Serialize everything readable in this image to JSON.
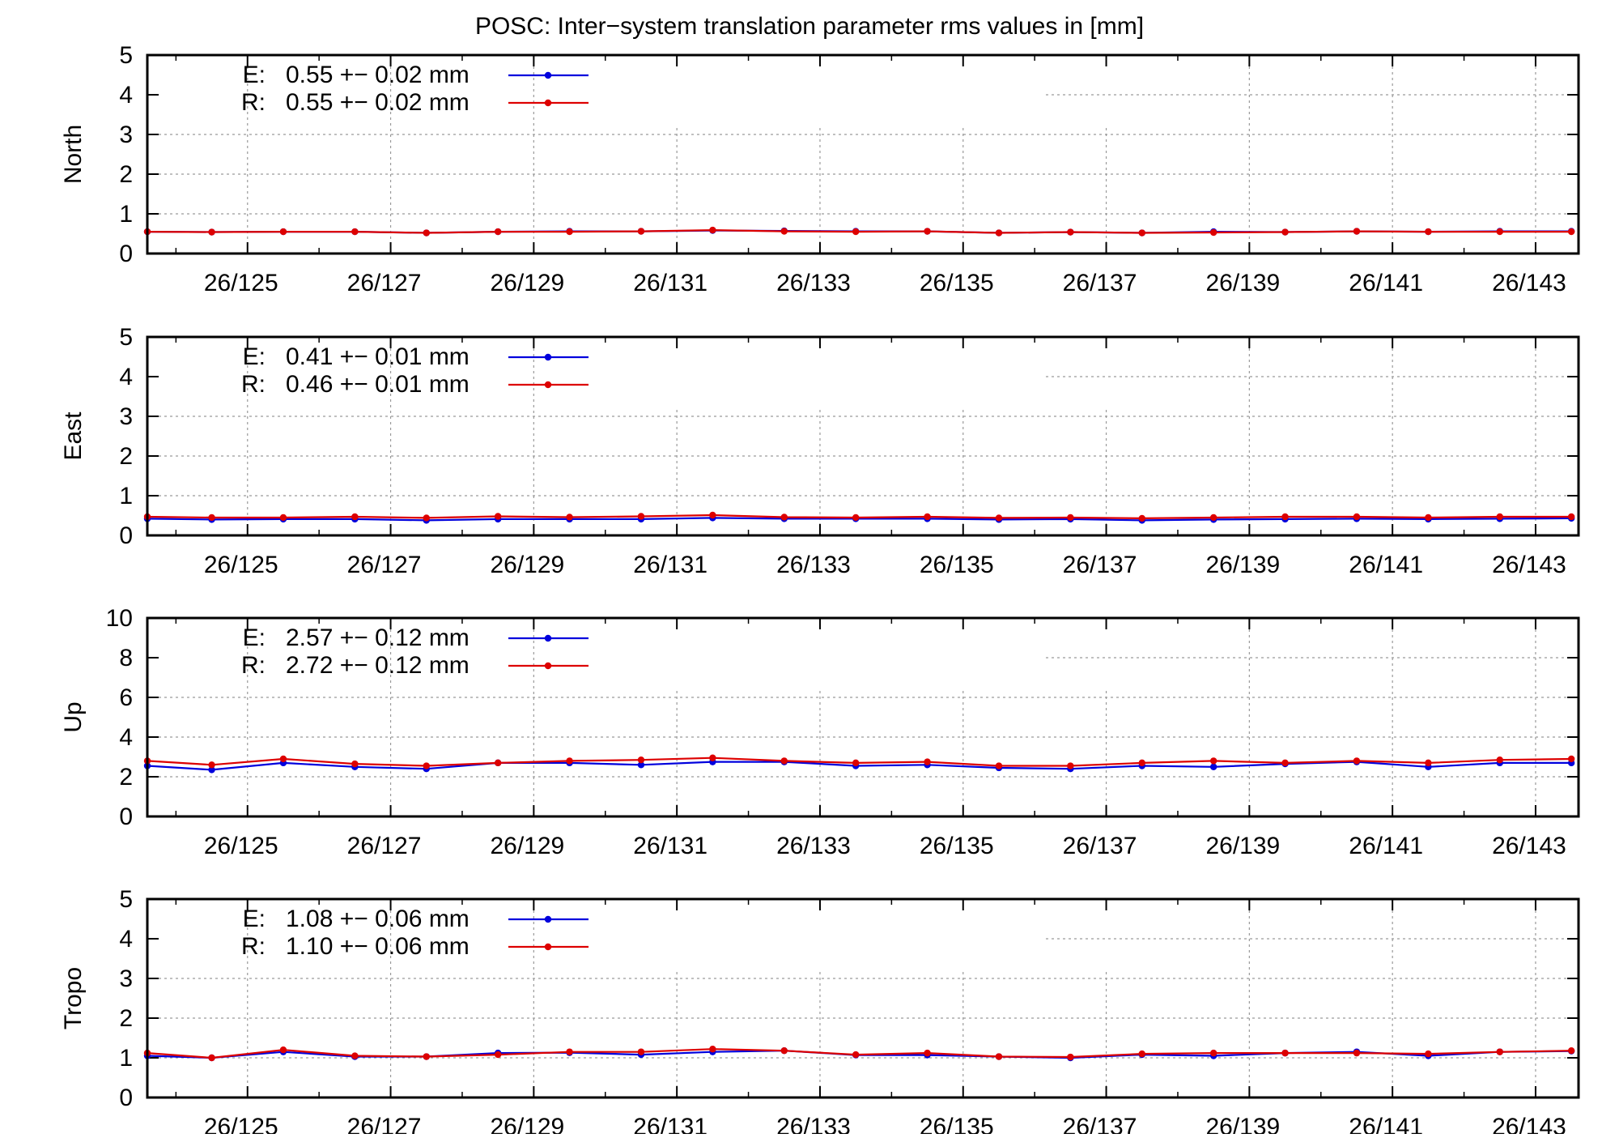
{
  "title": "POSC: Inter−system translation parameter rms values in [mm]",
  "colors": {
    "E": "#0000dd",
    "R": "#dd0000",
    "grid": "#9a9a9a",
    "frame": "#000000"
  },
  "x_tick_labels": [
    "26/125",
    "26/127",
    "26/129",
    "26/131",
    "26/133",
    "26/135",
    "26/137",
    "26/139",
    "26/141",
    "26/143"
  ],
  "chart_data": [
    {
      "type": "line",
      "ylabel": "North",
      "ylim": [
        0,
        5
      ],
      "yticks": [
        0,
        1,
        2,
        3,
        4,
        5
      ],
      "xlim": [
        123.6,
        143.6
      ],
      "x": [
        123.6,
        124.5,
        125.5,
        126.5,
        127.5,
        128.5,
        129.5,
        130.5,
        131.5,
        132.5,
        133.5,
        134.5,
        135.5,
        136.5,
        137.5,
        138.5,
        139.5,
        140.5,
        141.5,
        142.5,
        143.5
      ],
      "grid": true,
      "legend_position": "top-left",
      "legend": [
        {
          "key": "E:",
          "text": "0.55 +− 0.02 mm"
        },
        {
          "key": "R:",
          "text": "0.55 +− 0.02 mm"
        }
      ],
      "series": [
        {
          "name": "E",
          "values": [
            0.55,
            0.54,
            0.55,
            0.55,
            0.52,
            0.55,
            0.56,
            0.56,
            0.58,
            0.57,
            0.56,
            0.56,
            0.52,
            0.54,
            0.52,
            0.55,
            0.54,
            0.56,
            0.55,
            0.56,
            0.56
          ]
        },
        {
          "name": "R",
          "values": [
            0.55,
            0.54,
            0.55,
            0.55,
            0.52,
            0.55,
            0.55,
            0.56,
            0.59,
            0.56,
            0.55,
            0.56,
            0.52,
            0.54,
            0.52,
            0.53,
            0.54,
            0.56,
            0.55,
            0.55,
            0.55
          ]
        }
      ]
    },
    {
      "type": "line",
      "ylabel": "East",
      "ylim": [
        0,
        5
      ],
      "yticks": [
        0,
        1,
        2,
        3,
        4,
        5
      ],
      "xlim": [
        123.6,
        143.6
      ],
      "x": [
        123.6,
        124.5,
        125.5,
        126.5,
        127.5,
        128.5,
        129.5,
        130.5,
        131.5,
        132.5,
        133.5,
        134.5,
        135.5,
        136.5,
        137.5,
        138.5,
        139.5,
        140.5,
        141.5,
        142.5,
        143.5
      ],
      "grid": true,
      "legend_position": "top-left",
      "legend": [
        {
          "key": "E:",
          "text": "0.41 +− 0.01 mm"
        },
        {
          "key": "R:",
          "text": "0.46 +− 0.01 mm"
        }
      ],
      "series": [
        {
          "name": "E",
          "values": [
            0.42,
            0.4,
            0.41,
            0.41,
            0.38,
            0.41,
            0.41,
            0.41,
            0.44,
            0.42,
            0.42,
            0.42,
            0.4,
            0.41,
            0.38,
            0.4,
            0.41,
            0.42,
            0.41,
            0.42,
            0.43
          ]
        },
        {
          "name": "R",
          "values": [
            0.47,
            0.45,
            0.45,
            0.47,
            0.44,
            0.48,
            0.46,
            0.48,
            0.51,
            0.46,
            0.45,
            0.47,
            0.44,
            0.45,
            0.43,
            0.45,
            0.47,
            0.47,
            0.45,
            0.47,
            0.47
          ]
        }
      ]
    },
    {
      "type": "line",
      "ylabel": "Up",
      "ylim": [
        0,
        10
      ],
      "yticks": [
        0,
        2,
        4,
        6,
        8,
        10
      ],
      "xlim": [
        123.6,
        143.6
      ],
      "x": [
        123.6,
        124.5,
        125.5,
        126.5,
        127.5,
        128.5,
        129.5,
        130.5,
        131.5,
        132.5,
        133.5,
        134.5,
        135.5,
        136.5,
        137.5,
        138.5,
        139.5,
        140.5,
        141.5,
        142.5,
        143.5
      ],
      "grid": true,
      "legend_position": "top-left",
      "legend": [
        {
          "key": "E:",
          "text": "2.57 +− 0.12 mm"
        },
        {
          "key": "R:",
          "text": "2.72 +− 0.12 mm"
        }
      ],
      "series": [
        {
          "name": "E",
          "values": [
            2.55,
            2.35,
            2.7,
            2.5,
            2.4,
            2.7,
            2.7,
            2.6,
            2.75,
            2.75,
            2.55,
            2.6,
            2.45,
            2.4,
            2.55,
            2.5,
            2.65,
            2.75,
            2.5,
            2.7,
            2.7
          ]
        },
        {
          "name": "R",
          "values": [
            2.8,
            2.6,
            2.9,
            2.65,
            2.55,
            2.7,
            2.8,
            2.85,
            2.95,
            2.8,
            2.7,
            2.75,
            2.55,
            2.55,
            2.7,
            2.8,
            2.7,
            2.8,
            2.7,
            2.85,
            2.9
          ]
        }
      ]
    },
    {
      "type": "line",
      "ylabel": "Tropo",
      "ylim": [
        0,
        5
      ],
      "yticks": [
        0,
        1,
        2,
        3,
        4,
        5
      ],
      "xlim": [
        123.6,
        143.6
      ],
      "x": [
        123.6,
        124.5,
        125.5,
        126.5,
        127.5,
        128.5,
        129.5,
        130.5,
        131.5,
        132.5,
        133.5,
        134.5,
        135.5,
        136.5,
        137.5,
        138.5,
        139.5,
        140.5,
        141.5,
        142.5,
        143.5
      ],
      "grid": true,
      "legend_position": "top-left",
      "legend": [
        {
          "key": "E:",
          "text": "1.08 +− 0.06 mm"
        },
        {
          "key": "R:",
          "text": "1.10 +− 0.06 mm"
        }
      ],
      "series": [
        {
          "name": "E",
          "values": [
            1.05,
            1.0,
            1.15,
            1.03,
            1.03,
            1.12,
            1.13,
            1.08,
            1.15,
            1.18,
            1.07,
            1.07,
            1.03,
            1.0,
            1.08,
            1.05,
            1.12,
            1.15,
            1.05,
            1.15,
            1.17
          ]
        },
        {
          "name": "R",
          "values": [
            1.12,
            1.0,
            1.2,
            1.05,
            1.03,
            1.08,
            1.15,
            1.15,
            1.22,
            1.18,
            1.08,
            1.12,
            1.03,
            1.02,
            1.1,
            1.12,
            1.12,
            1.12,
            1.1,
            1.15,
            1.18
          ]
        }
      ]
    }
  ]
}
